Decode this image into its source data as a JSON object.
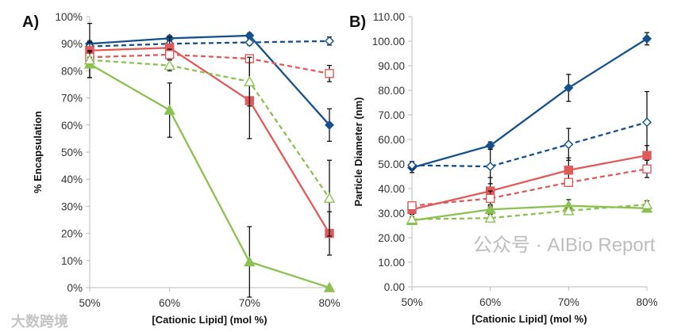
{
  "watermarks": {
    "left": "大数跨境",
    "right": "公众号 · AIBio Report"
  },
  "colors": {
    "blue": "#14508C",
    "red": "#E05A5A",
    "green": "#8CC152"
  },
  "chart_data": [
    {
      "type": "line",
      "panel_label": "A)",
      "xlabel": "[Cationic Lipid] (mol %)",
      "ylabel": "% Encapsulation",
      "categories": [
        "50%",
        "60%",
        "70%",
        "80%"
      ],
      "ylim": [
        0,
        100
      ],
      "yticks": [
        "0%",
        "10%",
        "20%",
        "30%",
        "40%",
        "50%",
        "60%",
        "70%",
        "80%",
        "90%",
        "100%"
      ],
      "ytick_values": [
        0,
        10,
        20,
        30,
        40,
        50,
        60,
        70,
        80,
        90,
        100
      ],
      "series": [
        {
          "color": "blue",
          "dashed": false,
          "marker": "diamond",
          "filled": true,
          "values": [
            90,
            92,
            93,
            60
          ],
          "errors": [
            1,
            1,
            1,
            6
          ]
        },
        {
          "color": "blue",
          "dashed": true,
          "marker": "diamond",
          "filled": false,
          "values": [
            89,
            90,
            90.5,
            91
          ],
          "errors": [
            1.5,
            1,
            1,
            1.5
          ]
        },
        {
          "color": "red",
          "dashed": false,
          "marker": "square",
          "filled": true,
          "values": [
            87.5,
            88.5,
            69,
            20
          ],
          "errors": [
            10,
            4,
            14,
            8
          ]
        },
        {
          "color": "red",
          "dashed": true,
          "marker": "square",
          "filled": false,
          "values": [
            85,
            86,
            84.5,
            79
          ],
          "errors": [
            2,
            2,
            1,
            3
          ]
        },
        {
          "color": "green",
          "dashed": false,
          "marker": "triangle",
          "filled": true,
          "values": [
            82.5,
            65.5,
            9.5,
            0
          ],
          "errors": [
            5,
            10,
            13,
            0
          ]
        },
        {
          "color": "green",
          "dashed": true,
          "marker": "triangle",
          "filled": false,
          "values": [
            84,
            82,
            76,
            33
          ],
          "errors": [
            1,
            2,
            9,
            14
          ]
        }
      ]
    },
    {
      "type": "line",
      "panel_label": "B)",
      "xlabel": "[Cationic Lipid] (mol %)",
      "ylabel": "Particle Diameter (nm)",
      "categories": [
        "50%",
        "60%",
        "70%",
        "80%"
      ],
      "ylim": [
        0,
        110
      ],
      "yticks": [
        "0.00",
        "10.00",
        "20.00",
        "30.00",
        "40.00",
        "50.00",
        "60.00",
        "70.00",
        "80.00",
        "90.00",
        "100.00",
        "110.00"
      ],
      "ytick_values": [
        0,
        10,
        20,
        30,
        40,
        50,
        60,
        70,
        80,
        90,
        100,
        110
      ],
      "series": [
        {
          "color": "blue",
          "dashed": false,
          "marker": "diamond",
          "filled": true,
          "values": [
            48.5,
            57.5,
            81,
            101
          ],
          "errors": [
            2,
            1.5,
            5.5,
            2.5
          ]
        },
        {
          "color": "blue",
          "dashed": true,
          "marker": "diamond",
          "filled": false,
          "values": [
            49.5,
            49,
            58,
            67
          ],
          "errors": [
            1.5,
            7,
            6.5,
            12.5
          ]
        },
        {
          "color": "red",
          "dashed": false,
          "marker": "square",
          "filled": true,
          "values": [
            31.5,
            39,
            47.5,
            53.5
          ],
          "errors": [
            2,
            5.5,
            5,
            4
          ]
        },
        {
          "color": "red",
          "dashed": true,
          "marker": "square",
          "filled": false,
          "values": [
            33,
            36,
            42.5,
            48
          ],
          "errors": [
            1,
            3,
            1.5,
            3.5
          ]
        },
        {
          "color": "green",
          "dashed": false,
          "marker": "triangle",
          "filled": true,
          "values": [
            27,
            31.5,
            33,
            32
          ],
          "errors": [
            1,
            1,
            2.5,
            1
          ]
        },
        {
          "color": "green",
          "dashed": true,
          "marker": "triangle",
          "filled": false,
          "values": [
            27.5,
            28,
            31,
            33.5
          ],
          "errors": [
            1,
            1.5,
            1,
            1.5
          ]
        }
      ]
    }
  ]
}
